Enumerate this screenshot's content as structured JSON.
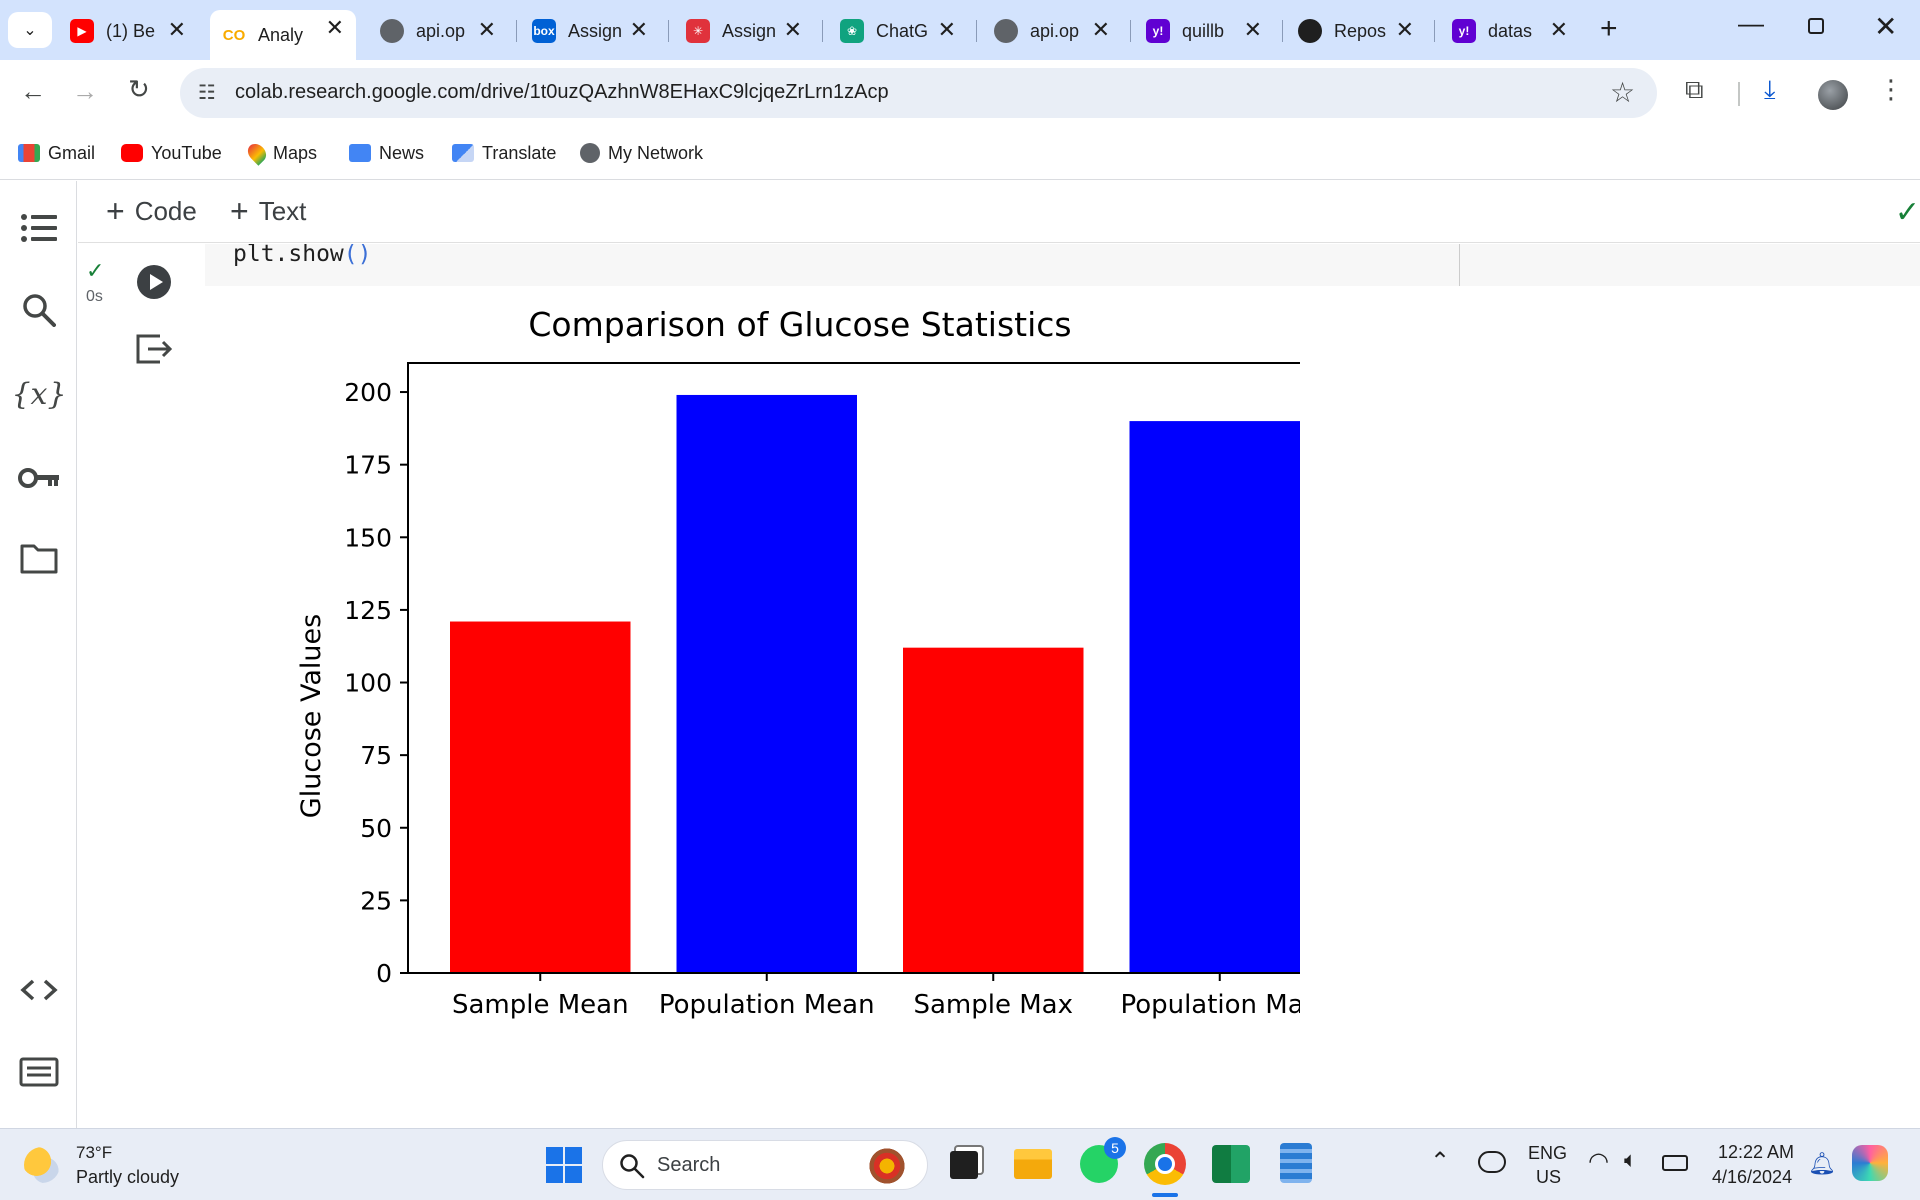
{
  "browser": {
    "tabs": [
      {
        "label": "(1) Be",
        "icon": "youtube-icon",
        "color": "#ff0000"
      },
      {
        "label": "Analy",
        "icon": "colab-icon",
        "color": "#f9ab00",
        "active": true
      },
      {
        "label": "api.op",
        "icon": "globe-icon",
        "color": "#5f6368"
      },
      {
        "label": "Assign",
        "icon": "box-icon",
        "color": "#0061d5"
      },
      {
        "label": "Assign",
        "icon": "asterisk-icon",
        "color": "#e0323c"
      },
      {
        "label": "ChatG",
        "icon": "chatgpt-icon",
        "color": "#10a37f"
      },
      {
        "label": "api.op",
        "icon": "globe-icon",
        "color": "#5f6368"
      },
      {
        "label": "quillb",
        "icon": "yahoo-icon",
        "color": "#6001d2"
      },
      {
        "label": "Repos",
        "icon": "github-icon",
        "color": "#1f1f1f"
      },
      {
        "label": "datas",
        "icon": "yahoo-icon",
        "color": "#6001d2"
      }
    ],
    "url": "colab.research.google.com/drive/1t0uzQAzhnW8EHaxC9lcjqeZrLrn1zAcp",
    "bookmarks": [
      {
        "label": "Gmail",
        "icon": "gmail-icon"
      },
      {
        "label": "YouTube",
        "icon": "youtube-icon"
      },
      {
        "label": "Maps",
        "icon": "maps-icon"
      },
      {
        "label": "News",
        "icon": "news-icon"
      },
      {
        "label": "Translate",
        "icon": "translate-icon"
      },
      {
        "label": "My Network",
        "icon": "network-icon"
      }
    ]
  },
  "colab": {
    "add_code": "Code",
    "add_text": "Text",
    "exec_time": "0s",
    "code_line": "plt.show",
    "code_parens": "()"
  },
  "chart_data": {
    "type": "bar",
    "title": "Comparison of Glucose Statistics",
    "xlabel": "",
    "ylabel": "Glucose Values",
    "categories": [
      "Sample Mean",
      "Population Mean",
      "Sample Max",
      "Population Max"
    ],
    "values": [
      121,
      199,
      112,
      190
    ],
    "colors": [
      "#ff0000",
      "#0000ff",
      "#ff0000",
      "#0000ff"
    ],
    "ylim": [
      0,
      210
    ],
    "yticks": [
      0,
      25,
      50,
      75,
      100,
      125,
      150,
      175,
      200
    ],
    "grid": false
  },
  "taskbar": {
    "weather_temp": "73°F",
    "weather_desc": "Partly cloudy",
    "search_placeholder": "Search",
    "whatsapp_badge": "5",
    "lang_top": "ENG",
    "lang_bottom": "US",
    "time": "12:22 AM",
    "date": "4/16/2024"
  }
}
